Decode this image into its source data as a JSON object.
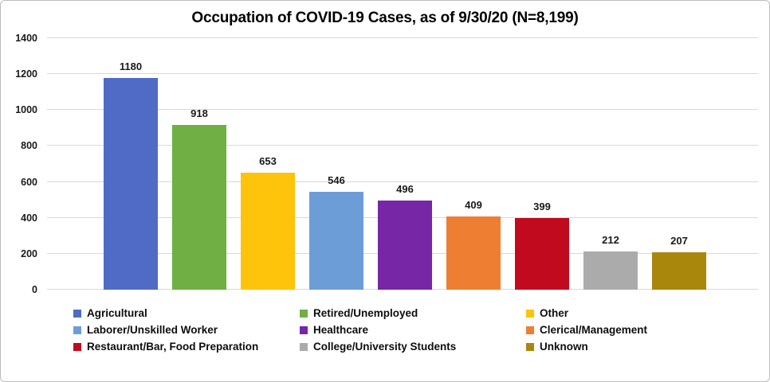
{
  "window": {
    "background": "#ffffff",
    "border_color": "#bdbdbd"
  },
  "chart_data": {
    "type": "bar",
    "title": "Occupation of COVID-19 Cases, as of 9/30/20 (N=8,199)",
    "categories": [
      "Agricultural",
      "Retired/Unemployed",
      "Other",
      "Laborer/Unskilled Worker",
      "Healthcare",
      "Clerical/Management",
      "Restaurant/Bar, Food Preparation",
      "College/University Students",
      "Unknown"
    ],
    "values": [
      1180,
      918,
      653,
      546,
      496,
      409,
      399,
      212,
      207
    ],
    "colors": [
      "#4F6BC6",
      "#6FAF43",
      "#FDC40B",
      "#6D9DD7",
      "#7726A5",
      "#EE7E32",
      "#C20A1F",
      "#ABABAB",
      "#A9870C"
    ],
    "xlabel": "",
    "ylabel": "",
    "ylim": [
      0,
      1400
    ],
    "yticks": [
      0,
      200,
      400,
      600,
      800,
      1000,
      1200,
      1400
    ],
    "grid": "horizontal",
    "gridline_color": "#d9d9d9",
    "data_labels": true,
    "label_color": "#1a1a1a",
    "legend_position": "bottom",
    "legend_columns": 3
  }
}
